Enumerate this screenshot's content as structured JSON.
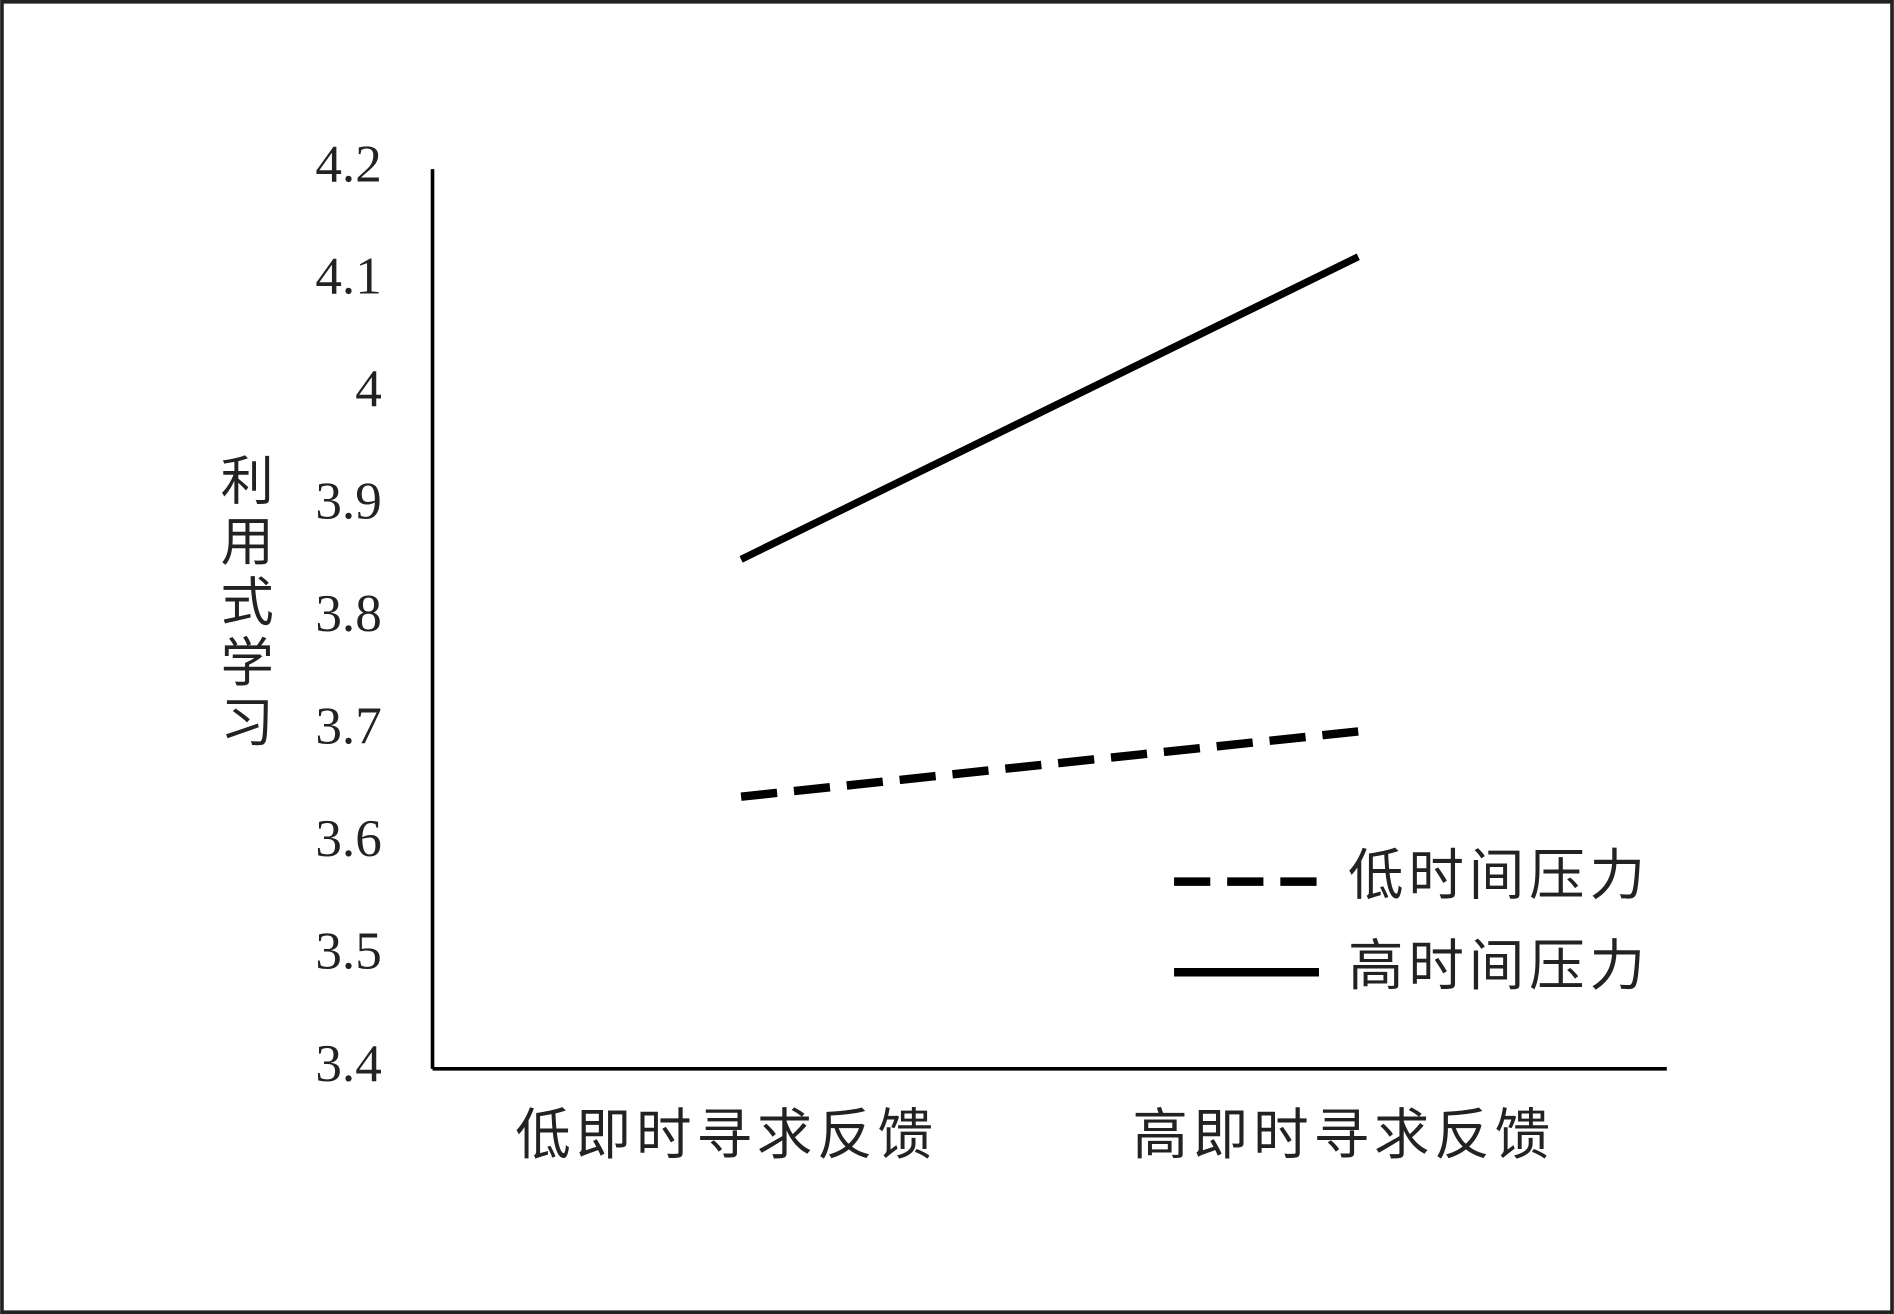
{
  "chart_data": {
    "type": "line",
    "y_label": "利用式学习",
    "categories": [
      "低即时寻求反馈",
      "高即时寻求反馈"
    ],
    "series": [
      {
        "name": "低时间压力",
        "color": "#000000",
        "style": "dashed",
        "values": [
          3.642,
          3.7
        ]
      },
      {
        "name": "高时间压力",
        "color": "#000000",
        "style": "solid",
        "values": [
          3.853,
          4.122
        ]
      }
    ],
    "ylim": [
      3.4,
      4.2
    ],
    "yticks": [
      3.4,
      3.5,
      3.6,
      3.7,
      3.8,
      3.9,
      4,
      4.1,
      4.2
    ],
    "grid": false,
    "legend": "lower right"
  }
}
